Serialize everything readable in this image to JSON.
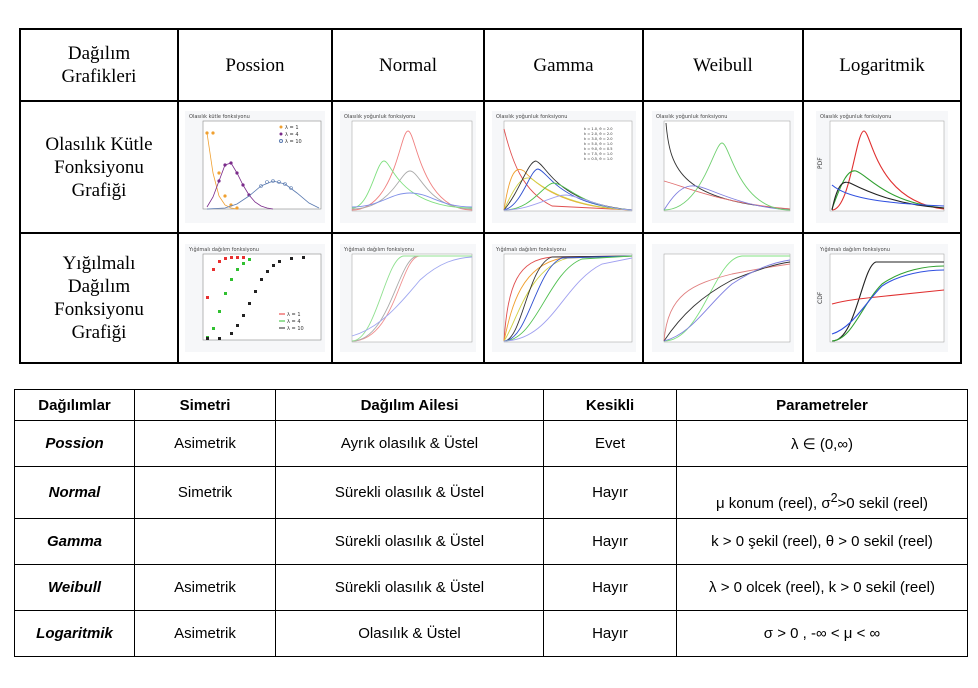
{
  "figure_table": {
    "corner": [
      "Dağılım",
      "Grafikleri"
    ],
    "columns": [
      "Possion",
      "Normal",
      "Gamma",
      "Weibull",
      "Logaritmik"
    ],
    "rows": [
      {
        "label": [
          "Olasılık Kütle",
          "Fonksiyonu",
          "Grafiği"
        ]
      },
      {
        "label": [
          "Yığılmalı",
          "Dağılım",
          "Fonksiyonu",
          "Grafiği"
        ]
      }
    ],
    "plots": {
      "poisson_pmf": {
        "title": "Olasılık kütle fonksiyonu",
        "legend": [
          "λ = 1",
          "λ = 4",
          "λ = 10"
        ]
      },
      "normal_pdf": {
        "title": "Olasılık yoğunluk fonksiyonu"
      },
      "gamma_pdf": {
        "title": "Olasılık yoğunluk fonksiyonu",
        "legend": [
          "k = 1.0, θ = 2.0",
          "k = 2.0, θ = 2.0",
          "k = 3.0, θ = 2.0",
          "k = 5.0, θ = 1.0",
          "k = 9.0, θ = 0.5",
          "k = 7.5, θ = 1.0",
          "k = 0.5, θ = 1.0"
        ]
      },
      "weibull_pdf": {
        "title": "Olasılık yoğunluk fonksiyonu"
      },
      "lognormal_pdf": {
        "title": "Olasılık yoğunluk fonksiyonu",
        "ylabel": "PDF"
      },
      "poisson_cdf": {
        "title": "Yığılmalı dağılım fonksiyonu",
        "legend": [
          "λ = 1",
          "λ = 4",
          "λ = 10"
        ]
      },
      "normal_cdf": {
        "title": "Yığılmalı dağılım fonksiyonu"
      },
      "gamma_cdf": {
        "title": "Yığılmalı dağılım fonksiyonu"
      },
      "weibull_cdf": {
        "title": ""
      },
      "lognormal_cdf": {
        "title": "Yığılmalı dağılım fonksiyonu",
        "ylabel": "CDF"
      }
    }
  },
  "properties_table": {
    "headers": [
      "Dağılımlar",
      "Simetri",
      "Dağılım Ailesi",
      "Kesikli",
      "Parametreler"
    ],
    "rows": [
      {
        "name": "Possion",
        "symmetry": "Asimetrik",
        "family": "Ayrık olasılık & Üstel",
        "discrete": "Evet",
        "params": "λ ∈ (0,∞)"
      },
      {
        "name": "Normal",
        "symmetry": "Simetrik",
        "family": "Sürekli olasılık & Üstel",
        "discrete": "Hayır",
        "params_prefix": "μ konum (reel),  σ",
        "params_sup": "2",
        "params_suffix": ">0 sekil (reel)"
      },
      {
        "name": "Gamma",
        "symmetry": "",
        "family": "Sürekli olasılık & Üstel",
        "discrete": "Hayır",
        "params": "k > 0 şekil (reel), θ > 0 sekil (reel)"
      },
      {
        "name": "Weibull",
        "symmetry": "Asimetrik",
        "family": "Sürekli olasılık & Üstel",
        "discrete": "Hayır",
        "params": "λ > 0 olcek (reel), k > 0 sekil (reel)"
      },
      {
        "name": "Logaritmik",
        "symmetry": "Asimetrik",
        "family": "Olasılık & Üstel",
        "discrete": "Hayır",
        "params": "σ > 0 , -∞ < μ < ∞"
      }
    ]
  },
  "colors": {
    "border": "#000000",
    "plot_bg": "#f6f7f9",
    "red": "#e8403a",
    "green": "#3cc44a",
    "blue": "#5a6ee0",
    "black": "#222222"
  }
}
